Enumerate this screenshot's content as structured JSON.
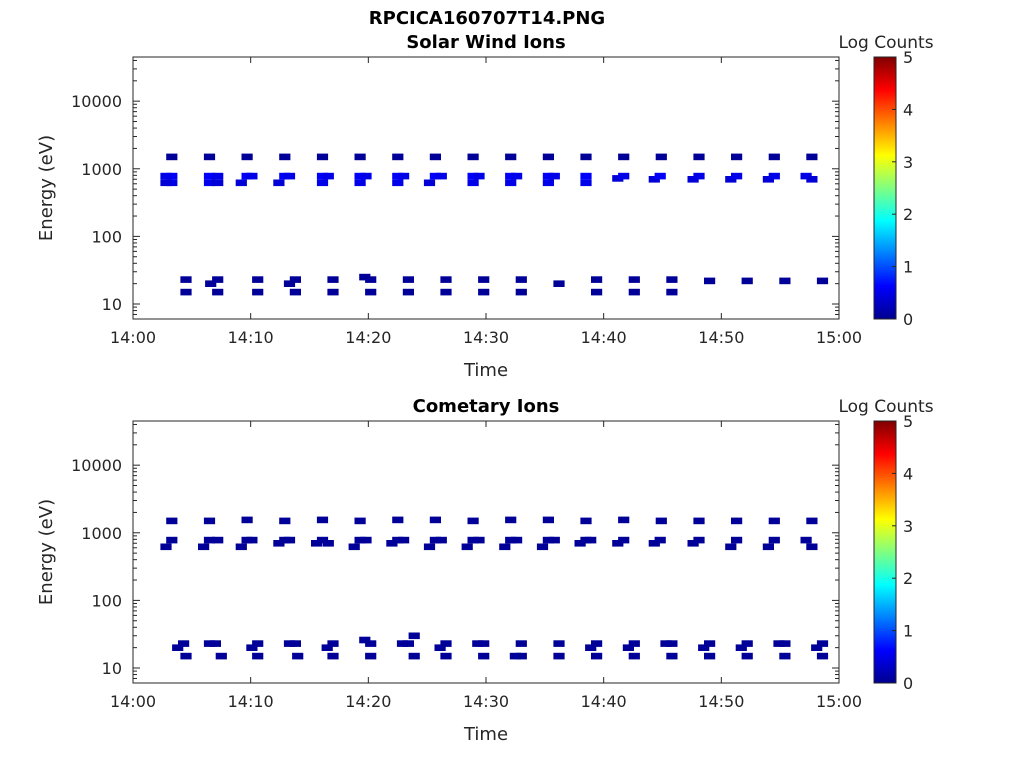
{
  "figure": {
    "title": "RPCICA160707T14.PNG"
  },
  "colormap": [
    "#00008f",
    "#0000ff",
    "#0080ff",
    "#00ffff",
    "#80ff80",
    "#ffff00",
    "#ff8000",
    "#ff0000",
    "#800000"
  ],
  "chart_data": [
    {
      "type": "heatmap",
      "title": "Solar Wind Ions",
      "xlabel": "Time",
      "ylabel": "Energy (eV)",
      "x_tick_labels": [
        "14:00",
        "14:10",
        "14:20",
        "14:30",
        "14:40",
        "14:50",
        "15:00"
      ],
      "y_tick_labels": [
        "10",
        "100",
        "1000",
        "10000"
      ],
      "xlim_minutes": [
        0,
        60
      ],
      "ylim_eV": [
        6,
        45000
      ],
      "y_scale": "log",
      "colorbar": {
        "label": "Log Counts",
        "range": [
          0,
          5
        ],
        "tick_labels": [
          "0",
          "1",
          "2",
          "3",
          "4",
          "5"
        ]
      },
      "cells": [
        [
          3.3,
          1500,
          0.05
        ],
        [
          3.3,
          780,
          0.6
        ],
        [
          3.3,
          620,
          0.5
        ],
        [
          2.8,
          780,
          0.5
        ],
        [
          2.8,
          620,
          0.4
        ],
        [
          6.5,
          1500,
          0.05
        ],
        [
          6.5,
          780,
          0.6
        ],
        [
          6.5,
          620,
          0.5
        ],
        [
          7.2,
          780,
          0.5
        ],
        [
          7.2,
          620,
          0.4
        ],
        [
          9.7,
          1500,
          0.05
        ],
        [
          9.7,
          780,
          0.6
        ],
        [
          9.2,
          620,
          0.4
        ],
        [
          10.1,
          780,
          0.5
        ],
        [
          12.9,
          1500,
          0.05
        ],
        [
          12.9,
          780,
          0.6
        ],
        [
          12.4,
          620,
          0.4
        ],
        [
          13.3,
          780,
          0.5
        ],
        [
          16.1,
          1500,
          0.05
        ],
        [
          16.1,
          780,
          0.6
        ],
        [
          16.1,
          620,
          0.5
        ],
        [
          16.6,
          780,
          0.5
        ],
        [
          19.3,
          1500,
          0.05
        ],
        [
          19.3,
          780,
          0.6
        ],
        [
          19.3,
          620,
          0.5
        ],
        [
          19.8,
          780,
          0.5
        ],
        [
          22.5,
          1500,
          0.05
        ],
        [
          22.5,
          780,
          0.6
        ],
        [
          22.5,
          620,
          0.5
        ],
        [
          23.0,
          780,
          0.5
        ],
        [
          25.7,
          1500,
          0.05
        ],
        [
          25.7,
          780,
          0.6
        ],
        [
          25.2,
          620,
          0.4
        ],
        [
          26.2,
          780,
          0.5
        ],
        [
          28.9,
          1500,
          0.05
        ],
        [
          28.9,
          780,
          0.6
        ],
        [
          28.9,
          620,
          0.5
        ],
        [
          29.4,
          780,
          0.5
        ],
        [
          32.1,
          1500,
          0.05
        ],
        [
          32.1,
          780,
          0.6
        ],
        [
          32.1,
          620,
          0.5
        ],
        [
          32.6,
          780,
          0.5
        ],
        [
          35.3,
          1500,
          0.05
        ],
        [
          35.3,
          780,
          0.6
        ],
        [
          35.3,
          620,
          0.5
        ],
        [
          35.8,
          780,
          0.5
        ],
        [
          38.5,
          1500,
          0.05
        ],
        [
          38.5,
          780,
          0.6
        ],
        [
          38.5,
          620,
          0.5
        ],
        [
          41.7,
          1500,
          0.05
        ],
        [
          41.2,
          720,
          0.4
        ],
        [
          41.7,
          780,
          0.5
        ],
        [
          44.3,
          700,
          0.4
        ],
        [
          44.8,
          780,
          0.6
        ],
        [
          44.9,
          1500,
          0.05
        ],
        [
          48.1,
          1500,
          0.05
        ],
        [
          47.6,
          700,
          0.4
        ],
        [
          48.1,
          780,
          0.5
        ],
        [
          51.3,
          1500,
          0.05
        ],
        [
          50.8,
          700,
          0.4
        ],
        [
          51.3,
          780,
          0.5
        ],
        [
          54.5,
          1500,
          0.05
        ],
        [
          54.0,
          700,
          0.4
        ],
        [
          54.5,
          780,
          0.5
        ],
        [
          57.7,
          1500,
          0.05
        ],
        [
          57.2,
          780,
          0.5
        ],
        [
          57.7,
          700,
          0.4
        ],
        [
          4.5,
          23,
          0.05
        ],
        [
          4.5,
          15,
          0.05
        ],
        [
          7.2,
          23,
          0.05
        ],
        [
          6.6,
          20,
          0.05
        ],
        [
          7.2,
          15,
          0.05
        ],
        [
          10.6,
          23,
          0.05
        ],
        [
          10.6,
          15,
          0.05
        ],
        [
          13.8,
          23,
          0.05
        ],
        [
          13.3,
          20,
          0.05
        ],
        [
          13.8,
          15,
          0.05
        ],
        [
          17.0,
          23,
          0.05
        ],
        [
          17.0,
          15,
          0.05
        ],
        [
          20.2,
          23,
          0.05
        ],
        [
          19.7,
          25,
          0.05
        ],
        [
          20.2,
          15,
          0.05
        ],
        [
          23.4,
          23,
          0.05
        ],
        [
          23.4,
          15,
          0.05
        ],
        [
          26.6,
          23,
          0.05
        ],
        [
          26.6,
          15,
          0.05
        ],
        [
          29.8,
          23,
          0.05
        ],
        [
          29.8,
          15,
          0.05
        ],
        [
          33.0,
          23,
          0.05
        ],
        [
          33.0,
          15,
          0.05
        ],
        [
          36.2,
          20,
          0.05
        ],
        [
          39.4,
          23,
          0.05
        ],
        [
          39.4,
          15,
          0.05
        ],
        [
          42.6,
          23,
          0.05
        ],
        [
          42.6,
          15,
          0.05
        ],
        [
          45.8,
          23,
          0.05
        ],
        [
          45.8,
          15,
          0.05
        ],
        [
          49.0,
          22,
          0.05
        ],
        [
          52.2,
          22,
          0.05
        ],
        [
          55.4,
          22,
          0.05
        ],
        [
          58.6,
          22,
          0.05
        ]
      ]
    },
    {
      "type": "heatmap",
      "title": "Cometary Ions",
      "xlabel": "Time",
      "ylabel": "Energy (eV)",
      "x_tick_labels": [
        "14:00",
        "14:10",
        "14:20",
        "14:30",
        "14:40",
        "14:50",
        "15:00"
      ],
      "y_tick_labels": [
        "10",
        "100",
        "1000",
        "10000"
      ],
      "xlim_minutes": [
        0,
        60
      ],
      "ylim_eV": [
        6,
        45000
      ],
      "y_scale": "log",
      "colorbar": {
        "label": "Log Counts",
        "range": [
          0,
          5
        ],
        "tick_labels": [
          "0",
          "1",
          "2",
          "3",
          "4",
          "5"
        ]
      },
      "cells": [
        [
          3.3,
          1500,
          0.05
        ],
        [
          3.3,
          780,
          0.05
        ],
        [
          2.8,
          620,
          0.05
        ],
        [
          6.5,
          1500,
          0.05
        ],
        [
          6.5,
          780,
          0.05
        ],
        [
          7.2,
          780,
          0.05
        ],
        [
          6.0,
          620,
          0.05
        ],
        [
          9.7,
          1550,
          0.05
        ],
        [
          9.7,
          780,
          0.05
        ],
        [
          9.2,
          620,
          0.05
        ],
        [
          10.1,
          780,
          0.05
        ],
        [
          12.9,
          1500,
          0.05
        ],
        [
          12.9,
          780,
          0.05
        ],
        [
          12.4,
          700,
          0.05
        ],
        [
          13.3,
          780,
          0.05
        ],
        [
          16.1,
          1550,
          0.05
        ],
        [
          16.1,
          780,
          0.05
        ],
        [
          15.6,
          700,
          0.05
        ],
        [
          16.6,
          700,
          0.05
        ],
        [
          19.3,
          1500,
          0.05
        ],
        [
          19.3,
          780,
          0.05
        ],
        [
          18.8,
          620,
          0.05
        ],
        [
          19.8,
          780,
          0.05
        ],
        [
          22.5,
          1550,
          0.05
        ],
        [
          22.5,
          780,
          0.05
        ],
        [
          22.0,
          700,
          0.05
        ],
        [
          23.0,
          780,
          0.05
        ],
        [
          25.7,
          1550,
          0.05
        ],
        [
          25.7,
          780,
          0.05
        ],
        [
          25.2,
          620,
          0.05
        ],
        [
          26.2,
          780,
          0.05
        ],
        [
          28.9,
          1500,
          0.05
        ],
        [
          28.9,
          780,
          0.05
        ],
        [
          28.4,
          620,
          0.05
        ],
        [
          29.4,
          780,
          0.05
        ],
        [
          32.1,
          1550,
          0.05
        ],
        [
          32.1,
          780,
          0.05
        ],
        [
          31.6,
          620,
          0.05
        ],
        [
          32.6,
          780,
          0.05
        ],
        [
          35.3,
          1550,
          0.05
        ],
        [
          35.3,
          780,
          0.05
        ],
        [
          34.8,
          620,
          0.05
        ],
        [
          35.8,
          780,
          0.05
        ],
        [
          38.5,
          1500,
          0.05
        ],
        [
          38.5,
          780,
          0.05
        ],
        [
          38.0,
          700,
          0.05
        ],
        [
          38.9,
          780,
          0.05
        ],
        [
          41.7,
          1550,
          0.05
        ],
        [
          41.2,
          700,
          0.05
        ],
        [
          41.7,
          780,
          0.05
        ],
        [
          44.9,
          1500,
          0.05
        ],
        [
          44.3,
          700,
          0.05
        ],
        [
          44.8,
          780,
          0.05
        ],
        [
          48.1,
          1500,
          0.05
        ],
        [
          47.6,
          700,
          0.05
        ],
        [
          48.1,
          780,
          0.05
        ],
        [
          51.3,
          1500,
          0.05
        ],
        [
          50.8,
          620,
          0.05
        ],
        [
          51.3,
          780,
          0.05
        ],
        [
          54.5,
          1500,
          0.05
        ],
        [
          54.0,
          620,
          0.05
        ],
        [
          54.5,
          780,
          0.05
        ],
        [
          57.7,
          1500,
          0.05
        ],
        [
          57.2,
          780,
          0.05
        ],
        [
          57.7,
          620,
          0.05
        ],
        [
          4.3,
          23,
          0.05
        ],
        [
          3.8,
          20,
          0.05
        ],
        [
          4.5,
          15,
          0.05
        ],
        [
          7.0,
          23,
          0.05
        ],
        [
          6.5,
          23,
          0.05
        ],
        [
          7.5,
          15,
          0.05
        ],
        [
          10.6,
          23,
          0.05
        ],
        [
          10.1,
          20,
          0.05
        ],
        [
          10.6,
          15,
          0.05
        ],
        [
          13.8,
          23,
          0.05
        ],
        [
          13.3,
          23,
          0.05
        ],
        [
          14.0,
          15,
          0.05
        ],
        [
          17.0,
          23,
          0.05
        ],
        [
          16.5,
          20,
          0.05
        ],
        [
          17.0,
          15,
          0.05
        ],
        [
          20.2,
          23,
          0.05
        ],
        [
          19.7,
          26,
          0.05
        ],
        [
          20.2,
          15,
          0.05
        ],
        [
          23.4,
          23,
          0.05
        ],
        [
          23.9,
          30,
          0.05
        ],
        [
          22.9,
          23,
          0.05
        ],
        [
          23.9,
          15,
          0.05
        ],
        [
          26.6,
          23,
          0.05
        ],
        [
          26.1,
          20,
          0.05
        ],
        [
          26.6,
          15,
          0.05
        ],
        [
          29.8,
          23,
          0.05
        ],
        [
          29.3,
          23,
          0.05
        ],
        [
          29.8,
          15,
          0.05
        ],
        [
          33.0,
          23,
          0.05
        ],
        [
          32.5,
          15,
          0.05
        ],
        [
          33.0,
          15,
          0.05
        ],
        [
          36.2,
          23,
          0.05
        ],
        [
          36.2,
          15,
          0.05
        ],
        [
          39.4,
          23,
          0.05
        ],
        [
          38.9,
          20,
          0.05
        ],
        [
          39.4,
          15,
          0.05
        ],
        [
          42.6,
          23,
          0.05
        ],
        [
          42.1,
          20,
          0.05
        ],
        [
          42.6,
          15,
          0.05
        ],
        [
          45.8,
          23,
          0.05
        ],
        [
          45.3,
          23,
          0.05
        ],
        [
          45.8,
          15,
          0.05
        ],
        [
          49.0,
          23,
          0.05
        ],
        [
          48.5,
          20,
          0.05
        ],
        [
          49.0,
          15,
          0.05
        ],
        [
          52.2,
          23,
          0.05
        ],
        [
          51.7,
          20,
          0.05
        ],
        [
          52.2,
          15,
          0.05
        ],
        [
          55.4,
          23,
          0.05
        ],
        [
          54.9,
          23,
          0.05
        ],
        [
          55.4,
          15,
          0.05
        ],
        [
          58.6,
          23,
          0.05
        ],
        [
          58.1,
          20,
          0.05
        ],
        [
          58.6,
          15,
          0.05
        ]
      ]
    }
  ]
}
